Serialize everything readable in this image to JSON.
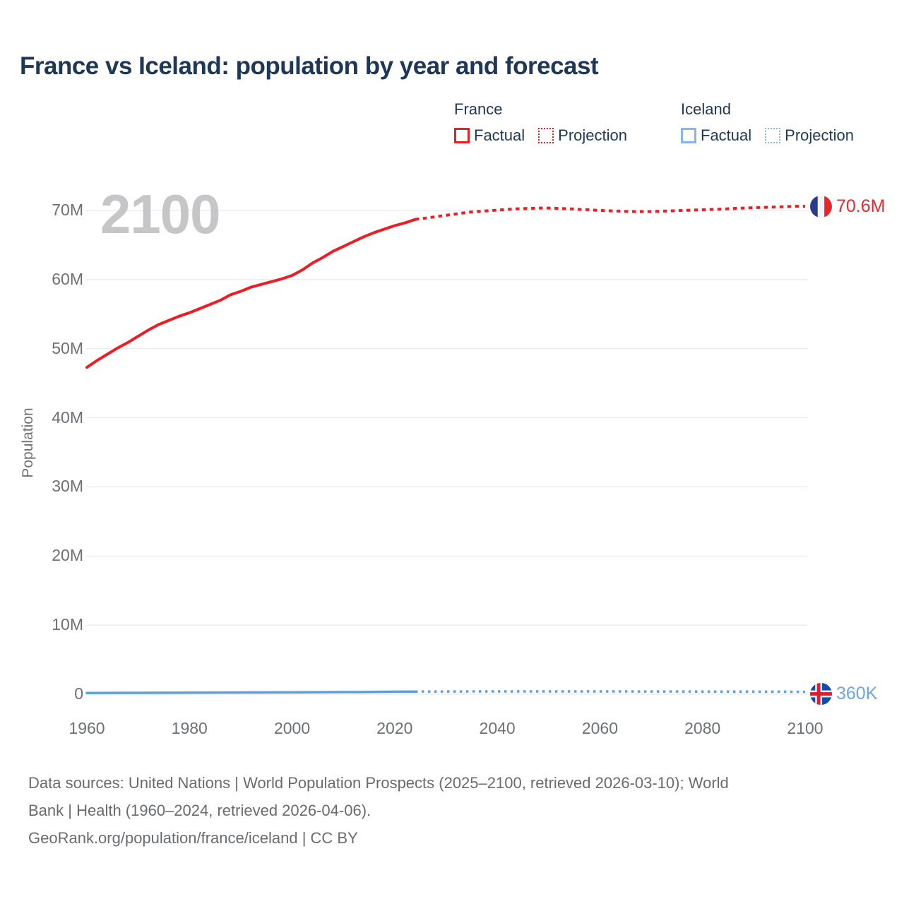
{
  "title": "France vs Iceland: population by year and forecast",
  "watermark": "2100",
  "legend": {
    "groups": [
      {
        "name": "France",
        "factual_label": "Factual",
        "projection_label": "Projection",
        "color": "#ee1c23"
      },
      {
        "name": "Iceland",
        "factual_label": "Factual",
        "projection_label": "Projection",
        "color": "#85b7ec"
      }
    ]
  },
  "end_labels": {
    "france": "70.6M",
    "iceland": "360K"
  },
  "footer": {
    "lines": [
      "Data sources: United Nations | World Population Prospects (2025–2100, retrieved 2026-03-10); World",
      "Bank | Health (1960–2024, retrieved 2026-04-06).",
      "GeoRank.org/population/france/iceland | CC BY"
    ]
  },
  "colors": {
    "france_red": "#ee1c23",
    "france_label_red": "#f2262e",
    "iceland_line_blue": "#5f9fdd",
    "iceland_swatch_blue": "#85b7ec",
    "iceland_label_blue": "#6ea6e4",
    "title_navy": "#1e3756",
    "axis_gray": "#6e7076",
    "grid_gray": "#e9e9ec",
    "watermark_gray": "#c6c6c9",
    "footer_gray": "#696b6e"
  },
  "chart_data": {
    "type": "line",
    "title": "France vs Iceland: population by year and forecast",
    "xlabel": "",
    "ylabel": "Population",
    "units": "millions of people",
    "xlim": [
      1960,
      2100
    ],
    "ylim": [
      0,
      73
    ],
    "grid": "horizontal",
    "legend_position": "top-right",
    "x_ticks": {
      "values": [
        1960,
        1980,
        2000,
        2020,
        2040,
        2060,
        2080,
        2100
      ],
      "labels": [
        "1960",
        "1980",
        "2000",
        "2020",
        "2040",
        "2060",
        "2080",
        "2100"
      ]
    },
    "y_ticks": {
      "values": [
        0,
        10,
        20,
        30,
        40,
        50,
        60,
        70
      ],
      "labels": [
        "0",
        "10M",
        "20M",
        "30M",
        "40M",
        "50M",
        "60M",
        "70M"
      ]
    },
    "series": [
      {
        "name": "France Factual",
        "style": "solid",
        "color": "#ee1c23",
        "width": 4,
        "points": [
          [
            1960,
            47.3
          ],
          [
            1962,
            48.3
          ],
          [
            1964,
            49.2
          ],
          [
            1966,
            50.1
          ],
          [
            1968,
            50.9
          ],
          [
            1970,
            51.8
          ],
          [
            1972,
            52.7
          ],
          [
            1974,
            53.5
          ],
          [
            1976,
            54.1
          ],
          [
            1978,
            54.7
          ],
          [
            1980,
            55.2
          ],
          [
            1982,
            55.8
          ],
          [
            1984,
            56.4
          ],
          [
            1986,
            57.0
          ],
          [
            1988,
            57.8
          ],
          [
            1990,
            58.3
          ],
          [
            1992,
            58.9
          ],
          [
            1994,
            59.3
          ],
          [
            1996,
            59.7
          ],
          [
            1998,
            60.1
          ],
          [
            2000,
            60.6
          ],
          [
            2002,
            61.4
          ],
          [
            2004,
            62.4
          ],
          [
            2006,
            63.2
          ],
          [
            2008,
            64.1
          ],
          [
            2010,
            64.8
          ],
          [
            2012,
            65.5
          ],
          [
            2014,
            66.2
          ],
          [
            2016,
            66.8
          ],
          [
            2018,
            67.3
          ],
          [
            2020,
            67.8
          ],
          [
            2022,
            68.2
          ],
          [
            2024,
            68.7
          ]
        ]
      },
      {
        "name": "France Projection",
        "style": "dotted",
        "color": "#ee1c23",
        "width": 4,
        "dash": "5.5 5.5",
        "points": [
          [
            2024,
            68.7
          ],
          [
            2026,
            68.9
          ],
          [
            2028,
            69.1
          ],
          [
            2030,
            69.3
          ],
          [
            2032,
            69.5
          ],
          [
            2034,
            69.7
          ],
          [
            2036,
            69.85
          ],
          [
            2038,
            69.95
          ],
          [
            2040,
            70.05
          ],
          [
            2042,
            70.15
          ],
          [
            2044,
            70.25
          ],
          [
            2046,
            70.3
          ],
          [
            2048,
            70.35
          ],
          [
            2050,
            70.35
          ],
          [
            2052,
            70.3
          ],
          [
            2054,
            70.25
          ],
          [
            2056,
            70.15
          ],
          [
            2058,
            70.1
          ],
          [
            2060,
            70.0
          ],
          [
            2062,
            69.95
          ],
          [
            2064,
            69.9
          ],
          [
            2066,
            69.85
          ],
          [
            2068,
            69.85
          ],
          [
            2070,
            69.85
          ],
          [
            2072,
            69.9
          ],
          [
            2074,
            69.95
          ],
          [
            2076,
            70.0
          ],
          [
            2078,
            70.05
          ],
          [
            2080,
            70.1
          ],
          [
            2082,
            70.15
          ],
          [
            2084,
            70.2
          ],
          [
            2086,
            70.3
          ],
          [
            2088,
            70.35
          ],
          [
            2090,
            70.4
          ],
          [
            2092,
            70.45
          ],
          [
            2094,
            70.5
          ],
          [
            2096,
            70.55
          ],
          [
            2098,
            70.6
          ],
          [
            2100,
            70.6
          ]
        ]
      },
      {
        "name": "Iceland Factual",
        "style": "solid",
        "color": "#5f9fdd",
        "width": 3.5,
        "points": [
          [
            1960,
            0.176
          ],
          [
            1965,
            0.192
          ],
          [
            1970,
            0.204
          ],
          [
            1975,
            0.216
          ],
          [
            1980,
            0.228
          ],
          [
            1985,
            0.241
          ],
          [
            1990,
            0.255
          ],
          [
            1995,
            0.267
          ],
          [
            2000,
            0.281
          ],
          [
            2005,
            0.297
          ],
          [
            2010,
            0.318
          ],
          [
            2015,
            0.331
          ],
          [
            2020,
            0.366
          ],
          [
            2024,
            0.384
          ]
        ]
      },
      {
        "name": "Iceland Projection",
        "style": "dotted",
        "color": "#5f9fdd",
        "width": 3.5,
        "dash": "3.5 5.5",
        "points": [
          [
            2024,
            0.384
          ],
          [
            2030,
            0.395
          ],
          [
            2040,
            0.404
          ],
          [
            2050,
            0.408
          ],
          [
            2060,
            0.405
          ],
          [
            2070,
            0.398
          ],
          [
            2080,
            0.388
          ],
          [
            2090,
            0.374
          ],
          [
            2100,
            0.36
          ]
        ]
      }
    ],
    "end_annotations": [
      {
        "series": "France Projection",
        "x": 2100,
        "y": 70.6,
        "label": "70.6M",
        "flag": "france"
      },
      {
        "series": "Iceland Projection",
        "x": 2100,
        "y": 0.36,
        "label": "360K",
        "flag": "iceland"
      }
    ]
  }
}
